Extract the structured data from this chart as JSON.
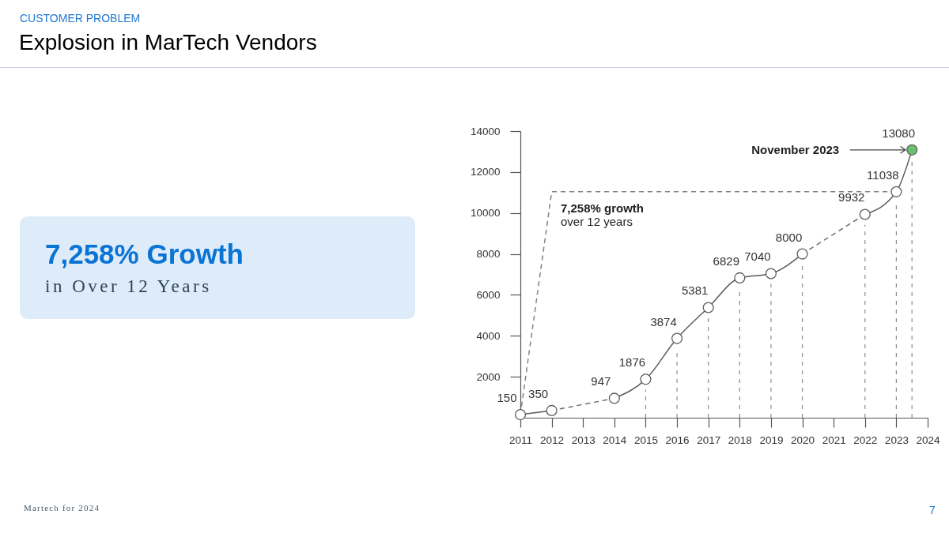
{
  "chart_data": [
    {
      "type": "other",
      "subtitle": "CUSTOMER PROBLEM",
      "title": "Explosion in MarTech Vendors",
      "annotations": [
        "7,258% Growth",
        "in Over 12 Years",
        "Martech for 2024"
      ]
    },
    {
      "type": "line",
      "xlim": [
        2011,
        2024
      ],
      "xticks": [
        2011,
        2012,
        2013,
        2014,
        2015,
        2016,
        2017,
        2018,
        2019,
        2020,
        2021,
        2022,
        2023,
        2024
      ],
      "ylim": [
        0,
        14000
      ],
      "yticks": [
        2000,
        4000,
        6000,
        8000,
        10000,
        12000,
        14000
      ],
      "marker": "circle",
      "series": [
        {
          "color": "#5c5c5c",
          "x": [
            2011,
            2012,
            2013,
            2014,
            2015,
            2016,
            2017,
            2018,
            2019,
            2020,
            2021,
            2022,
            2023,
            2023.5
          ],
          "values": [
            150,
            350,
            null,
            947,
            1876,
            3874,
            5381,
            6829,
            7040,
            8000,
            null,
            9932,
            11038,
            13080
          ],
          "colors": [
            "#ffffff",
            "#ffffff",
            null,
            "#ffffff",
            "#ffffff",
            "#ffffff",
            "#ffffff",
            "#ffffff",
            "#ffffff",
            "#ffffff",
            null,
            "#ffffff",
            "#ffffff",
            "#6cbf6e"
          ],
          "value_labels": [
            "150",
            "350",
            null,
            "947",
            "1876",
            "3874",
            "5381",
            "6829",
            "7040",
            "8000",
            null,
            "9932",
            "11038",
            "13080"
          ]
        },
        {
          "color": "#6e6e6e",
          "line_style": "dashed",
          "marker": "none",
          "x": [
            2012,
            2014
          ],
          "values": [
            350,
            947
          ]
        },
        {
          "color": "#6e6e6e",
          "line_style": "dashed",
          "marker": "none",
          "x": [
            2020,
            2022
          ],
          "values": [
            8000,
            9932
          ]
        },
        {
          "color": "#828282",
          "line_style": "dashed",
          "marker": "none",
          "x": [
            2011,
            2012,
            2023
          ],
          "values": [
            150,
            11038,
            11038
          ]
        }
      ],
      "ref_lines": [
        {
          "axis": "x",
          "value": 2015,
          "color": "#8c8c8c",
          "line_style": "dashed"
        },
        {
          "axis": "x",
          "value": 2016,
          "color": "#8c8c8c",
          "line_style": "dashed"
        },
        {
          "axis": "x",
          "value": 2017,
          "color": "#8c8c8c",
          "line_style": "dashed"
        },
        {
          "axis": "x",
          "value": 2018,
          "color": "#8c8c8c",
          "line_style": "dashed"
        },
        {
          "axis": "x",
          "value": 2019,
          "color": "#8c8c8c",
          "line_style": "dashed"
        },
        {
          "axis": "x",
          "value": 2020,
          "color": "#8c8c8c",
          "line_style": "dashed"
        },
        {
          "axis": "x",
          "value": 2022,
          "color": "#8c8c8c",
          "line_style": "dashed"
        },
        {
          "axis": "x",
          "value": 2023,
          "color": "#8c8c8c",
          "line_style": "dashed"
        },
        {
          "axis": "x",
          "value": 2023.5,
          "color": "#8c8c8c",
          "line_style": "dashed"
        }
      ],
      "annotations": [
        {
          "text": "November 2023",
          "x": 2023.5,
          "y": 13080
        },
        "7,258% growth",
        "over 12 years",
        "7"
      ]
    }
  ]
}
